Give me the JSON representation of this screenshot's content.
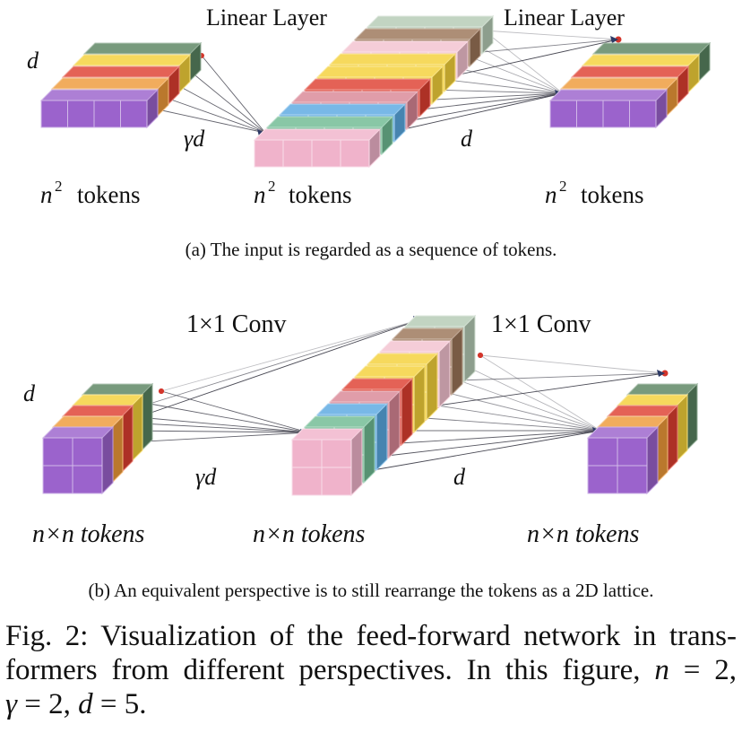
{
  "colors": {
    "purple": "#9b63cc",
    "orange": "#ee9a3a",
    "red": "#de3f31",
    "yellow": "#f4d13a",
    "green": "#5a8461",
    "pink": "#f0b3cb",
    "teal": "#6fbb93",
    "blue": "#5aa9e2",
    "rose": "#d98796",
    "lightpink": "#f3c2d0",
    "brown": "#9b7558",
    "sage": "#b5cab5"
  },
  "panel_a": {
    "layer_labels": [
      "Linear Layer",
      "Linear Layer"
    ],
    "dim_labels": [
      "d",
      "γd",
      "d"
    ],
    "token_labels": [
      "tokens",
      "tokens",
      "tokens"
    ],
    "caption": "(a) The input is regarded as a sequence of tokens."
  },
  "panel_b": {
    "layer_labels": [
      "1×1 Conv",
      "1×1 Conv"
    ],
    "dim_labels": [
      "d",
      "γd",
      "d"
    ],
    "token_labels": [
      "n×n tokens",
      "n×n tokens",
      "n×n tokens"
    ],
    "caption": "(b) An equivalent perspective is to still rearrange the tokens as a 2D lattice."
  },
  "figure_caption": {
    "line1": "Fig. 2: Visualization of the feed-forward network in trans-",
    "line2_a": "formers from different perspectives. In this figure, ",
    "line2_b": "n",
    "line2_c": " = 2,",
    "line3_a": "γ",
    "line3_b": " = 2, ",
    "line3_c": "d",
    "line3_d": " = 5."
  }
}
